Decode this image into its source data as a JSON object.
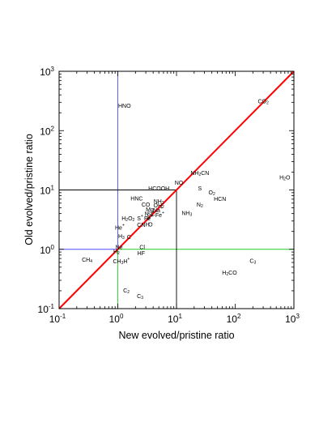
{
  "chart_data": {
    "type": "scatter",
    "title": "",
    "xlabel": "New evolved/pristine ratio",
    "ylabel": "Old evolved/pristine ratio",
    "x_scale": "log",
    "y_scale": "log",
    "xlim": [
      0.1,
      1000
    ],
    "ylim": [
      0.1,
      1000
    ],
    "grid": false,
    "ticks": [
      {
        "value": 0.1,
        "base": "10",
        "exp": "-1"
      },
      {
        "value": 1,
        "base": "10",
        "exp": "0"
      },
      {
        "value": 10,
        "base": "10",
        "exp": "1"
      },
      {
        "value": 100,
        "base": "10",
        "exp": "2"
      },
      {
        "value": 1000,
        "base": "10",
        "exp": "3"
      }
    ],
    "diagonal": {
      "from": [
        0.1,
        0.1
      ],
      "to": [
        1000,
        1000
      ],
      "color": "#ff0000"
    },
    "reference_lines": [
      {
        "axis": "x",
        "value": 1,
        "from": 1,
        "to": 1000,
        "color": "#4a4aff"
      },
      {
        "axis": "y",
        "value": 1,
        "from": 0.1,
        "to": 1,
        "color": "#4a4aff"
      },
      {
        "axis": "x",
        "value": 1,
        "from": 0.1,
        "to": 1,
        "color": "#22cc22"
      },
      {
        "axis": "y",
        "value": 1,
        "from": 1,
        "to": 1000,
        "color": "#22cc22"
      },
      {
        "axis": "x",
        "value": 10,
        "from": 0.1,
        "to": 10,
        "color": "#000000"
      },
      {
        "axis": "y",
        "value": 10,
        "from": 0.1,
        "to": 10,
        "color": "#000000"
      }
    ],
    "points": [
      {
        "x": 1.3,
        "y": 260,
        "label": [
          [
            "HNO"
          ]
        ]
      },
      {
        "x": 300,
        "y": 310,
        "label": [
          [
            "CO"
          ],
          [
            "2",
            "sub"
          ]
        ]
      },
      {
        "x": 25,
        "y": 19,
        "label": [
          [
            "NH"
          ],
          [
            "2",
            "sub"
          ],
          [
            "CN"
          ]
        ]
      },
      {
        "x": 11,
        "y": 13,
        "label": [
          [
            "NO"
          ]
        ]
      },
      {
        "x": 700,
        "y": 16,
        "label": [
          [
            "H"
          ],
          [
            "2",
            "sub"
          ],
          [
            "O"
          ]
        ]
      },
      {
        "x": 5,
        "y": 10.5,
        "label": [
          [
            "HCOOH"
          ]
        ]
      },
      {
        "x": 25,
        "y": 10.5,
        "label": [
          [
            "S"
          ]
        ]
      },
      {
        "x": 40,
        "y": 9,
        "label": [
          [
            "O"
          ],
          [
            "2",
            "sub"
          ]
        ]
      },
      {
        "x": 2.1,
        "y": 7.1,
        "label": [
          [
            "HNC"
          ]
        ]
      },
      {
        "x": 55,
        "y": 7,
        "label": [
          [
            "HCN"
          ]
        ]
      },
      {
        "x": 5,
        "y": 6.3,
        "label": [
          [
            "NH"
          ],
          [
            "2",
            "sub"
          ]
        ]
      },
      {
        "x": 3,
        "y": 5.6,
        "label": [
          [
            "CO"
          ]
        ]
      },
      {
        "x": 25,
        "y": 5.6,
        "label": [
          [
            "N"
          ],
          [
            "2",
            "sub"
          ]
        ]
      },
      {
        "x": 5,
        "y": 5.4,
        "label": [
          [
            "OH"
          ],
          [
            "2",
            "sub"
          ]
        ]
      },
      {
        "x": 3.5,
        "y": 4.6,
        "label": [
          [
            "Mg"
          ]
        ]
      },
      {
        "x": 4.8,
        "y": 4.5,
        "label": [
          [
            "Na"
          ],
          [
            "+",
            "sup"
          ]
        ]
      },
      {
        "x": 15,
        "y": 4,
        "label": [
          [
            "NH"
          ],
          [
            "3",
            "sub"
          ]
        ]
      },
      {
        "x": 3.1,
        "y": 3.9,
        "label": [
          [
            "N"
          ]
        ]
      },
      {
        "x": 3.5,
        "y": 3.9,
        "label": [
          [
            "Si"
          ]
        ]
      },
      {
        "x": 4,
        "y": 3.9,
        "label": [
          [
            "C"
          ]
        ]
      },
      {
        "x": 5.2,
        "y": 3.7,
        "label": [
          [
            "Fe"
          ],
          [
            "+",
            "sup"
          ]
        ]
      },
      {
        "x": 1.5,
        "y": 3.3,
        "label": [
          [
            "H"
          ],
          [
            "2",
            "sub"
          ],
          [
            "O"
          ],
          [
            "2",
            "sub"
          ]
        ]
      },
      {
        "x": 2.4,
        "y": 3.3,
        "label": [
          [
            "S"
          ],
          [
            "+",
            "sup"
          ]
        ]
      },
      {
        "x": 3.2,
        "y": 3.3,
        "label": [
          [
            "Fe"
          ]
        ]
      },
      {
        "x": 3.5,
        "y": 3.2,
        "label": [
          [
            "P"
          ],
          [
            "+",
            "sup"
          ]
        ]
      },
      {
        "x": 2.5,
        "y": 2.55,
        "label": [
          [
            "CN"
          ]
        ]
      },
      {
        "x": 3.2,
        "y": 2.6,
        "label": [
          [
            "H"
          ]
        ]
      },
      {
        "x": 3.6,
        "y": 2.6,
        "label": [
          [
            "O"
          ]
        ]
      },
      {
        "x": 1.08,
        "y": 2.3,
        "label": [
          [
            "He"
          ],
          [
            "+",
            "sup"
          ]
        ]
      },
      {
        "x": 1.15,
        "y": 1.65,
        "label": [
          [
            "H"
          ],
          [
            "3",
            "sub"
          ]
        ]
      },
      {
        "x": 1.55,
        "y": 1.6,
        "label": [
          [
            "C"
          ]
        ]
      },
      {
        "x": 1.05,
        "y": 1.08,
        "label": [
          [
            "Ne"
          ]
        ]
      },
      {
        "x": 2.6,
        "y": 1.08,
        "label": [
          [
            "Cl"
          ]
        ]
      },
      {
        "x": 0.95,
        "y": 0.9,
        "label": [
          [
            "H"
          ],
          [
            "2",
            "sub"
          ]
        ]
      },
      {
        "x": 2.5,
        "y": 0.85,
        "label": [
          [
            "HF"
          ]
        ]
      },
      {
        "x": 0.3,
        "y": 0.66,
        "label": [
          [
            "CH"
          ],
          [
            "4",
            "sub"
          ]
        ]
      },
      {
        "x": 1.15,
        "y": 0.62,
        "label": [
          [
            "CH"
          ],
          [
            "3",
            "sub"
          ],
          [
            "H"
          ],
          [
            "+",
            "sup"
          ]
        ]
      },
      {
        "x": 200,
        "y": 0.63,
        "label": [
          [
            "C"
          ],
          [
            "3",
            "sub"
          ]
        ]
      },
      {
        "x": 80,
        "y": 0.4,
        "label": [
          [
            "H"
          ],
          [
            "2",
            "sub"
          ],
          [
            "CO"
          ]
        ]
      },
      {
        "x": 1.4,
        "y": 0.2,
        "label": [
          [
            "C"
          ],
          [
            "2",
            "sub"
          ]
        ]
      },
      {
        "x": 2.4,
        "y": 0.16,
        "label": [
          [
            "C"
          ],
          [
            "3",
            "sub"
          ]
        ]
      }
    ]
  }
}
